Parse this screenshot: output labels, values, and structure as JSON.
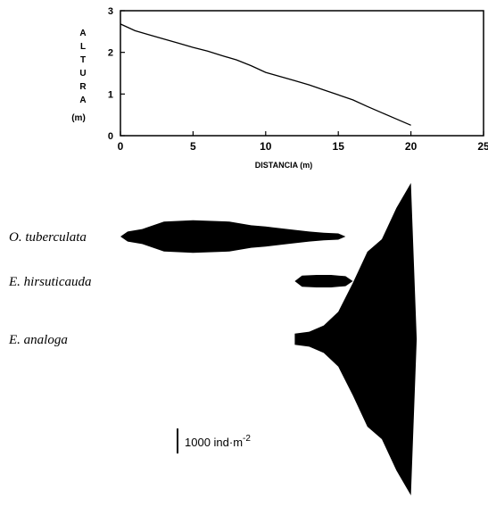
{
  "chart_data": [
    {
      "type": "line",
      "ylabel_letters": [
        "A",
        "L",
        "T",
        "U",
        "R",
        "A"
      ],
      "ylabel_unit": "(m)",
      "xlabel": "DISTANCIA (m)",
      "x_ticks": [
        "0",
        "5",
        "10",
        "15",
        "20",
        "25"
      ],
      "y_ticks": [
        "0",
        "1",
        "2",
        "3"
      ],
      "xlim": [
        0,
        25
      ],
      "ylim": [
        0,
        3
      ],
      "grid": false,
      "series": [
        {
          "x": [
            0,
            1,
            2,
            3,
            4,
            5,
            6,
            7,
            8,
            9,
            10,
            11,
            12,
            13,
            14,
            15,
            16,
            17,
            18,
            19,
            20
          ],
          "y": [
            2.68,
            2.52,
            2.42,
            2.32,
            2.22,
            2.12,
            2.03,
            1.92,
            1.82,
            1.68,
            1.52,
            1.42,
            1.32,
            1.22,
            1.1,
            0.98,
            0.86,
            0.7,
            0.55,
            0.4,
            0.25
          ]
        }
      ]
    },
    {
      "type": "area",
      "scale_label": "1000 ind·m",
      "scale_exponent": "-2",
      "scale_value": 1000,
      "categories": [
        "O. tuberculata",
        "E. hirsuticauda",
        "E. analoga"
      ],
      "series": [
        {
          "name": "O. tuberculata",
          "x": [
            0,
            0.5,
            1.5,
            3,
            5,
            7.5,
            9,
            10,
            11.5,
            13,
            14,
            15,
            15.5
          ],
          "density": [
            0,
            400,
            600,
            1200,
            1300,
            1200,
            900,
            800,
            600,
            400,
            300,
            250,
            0
          ]
        },
        {
          "name": "E. hirsuticauda",
          "x": [
            12,
            12.5,
            13.5,
            14.5,
            15.5,
            16
          ],
          "density": [
            0,
            450,
            500,
            500,
            400,
            0
          ]
        },
        {
          "name": "E. analoga",
          "x": [
            12,
            13,
            14,
            15,
            16,
            17,
            18,
            19,
            20,
            20.4
          ],
          "density": [
            450,
            600,
            1100,
            2200,
            4500,
            7000,
            8000,
            10500,
            12500,
            0
          ]
        }
      ]
    }
  ],
  "colors": {
    "ink": "#000000",
    "background": "#ffffff"
  }
}
